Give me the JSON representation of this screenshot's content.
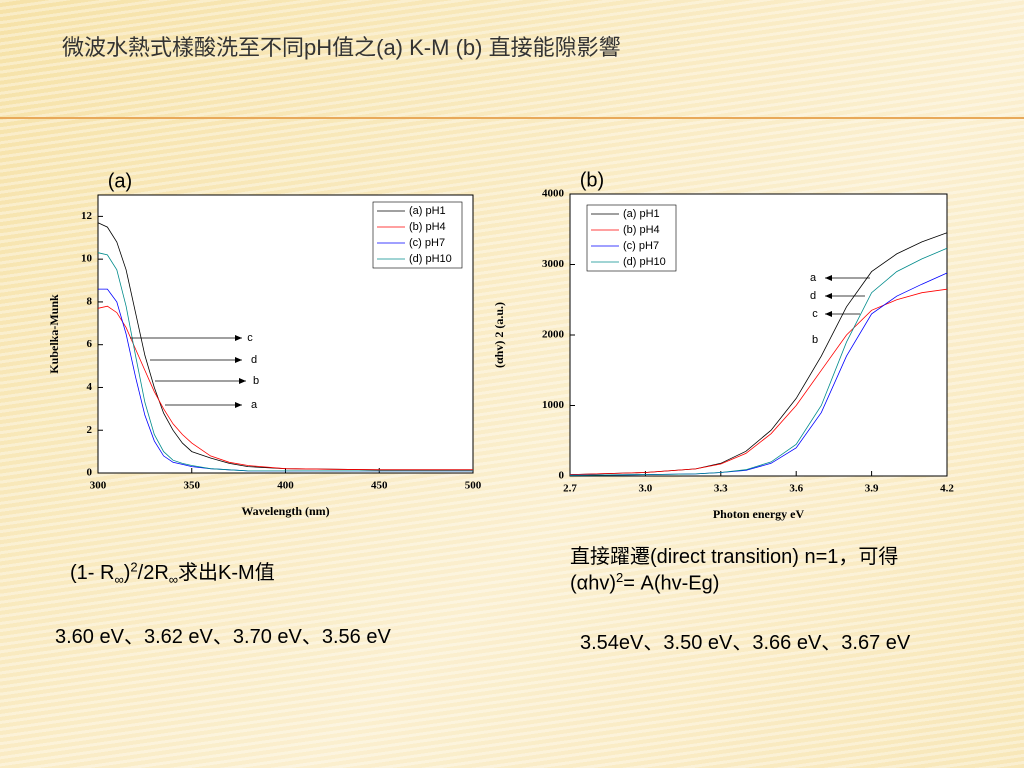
{
  "title": "微波水熱式樣酸洗至不同pH值之(a) K-M (b) 直接能隙影響",
  "chart_data": [
    {
      "type": "line",
      "panel_label": "(a)",
      "x_label": "Wavelength (nm)",
      "y_label": "Kubelka-Munk",
      "x": [
        300,
        305,
        310,
        315,
        320,
        325,
        330,
        335,
        340,
        345,
        350,
        360,
        370,
        380,
        400,
        450,
        500
      ],
      "series": [
        {
          "name": "(a) pH1",
          "color": "#000000",
          "values": [
            11.7,
            11.5,
            10.8,
            9.5,
            7.5,
            5.5,
            4.0,
            2.8,
            2.0,
            1.4,
            1.0,
            0.7,
            0.45,
            0.3,
            0.2,
            0.15,
            0.15
          ]
        },
        {
          "name": "(b) pH4",
          "color": "#ff0000",
          "values": [
            7.7,
            7.8,
            7.5,
            6.8,
            5.8,
            4.8,
            3.8,
            3.0,
            2.3,
            1.8,
            1.4,
            0.8,
            0.5,
            0.35,
            0.2,
            0.15,
            0.15
          ]
        },
        {
          "name": "(c) pH7",
          "color": "#0000ff",
          "values": [
            8.6,
            8.6,
            8.0,
            6.5,
            4.5,
            2.7,
            1.5,
            0.8,
            0.5,
            0.4,
            0.3,
            0.2,
            0.15,
            0.1,
            0.1,
            0.1,
            0.1
          ]
        },
        {
          "name": "(d) pH10",
          "color": "#008b8b",
          "values": [
            10.3,
            10.2,
            9.5,
            7.8,
            5.5,
            3.3,
            1.8,
            1.0,
            0.6,
            0.45,
            0.35,
            0.2,
            0.15,
            0.1,
            0.1,
            0.1,
            0.1
          ]
        }
      ],
      "annotations": [
        "c",
        "d",
        "b",
        "a"
      ],
      "xlim": [
        300,
        500
      ],
      "xticks": [
        300,
        350,
        400,
        450,
        500
      ],
      "ylim": [
        0,
        13
      ],
      "yticks": [
        0,
        2,
        4,
        6,
        8,
        10,
        12
      ]
    },
    {
      "type": "line",
      "panel_label": "(b)",
      "x_label": "Photon energy eV",
      "y_label": "(αhv) 2 (a.u.)",
      "x": [
        2.7,
        3.0,
        3.2,
        3.3,
        3.4,
        3.5,
        3.6,
        3.7,
        3.8,
        3.9,
        4.0,
        4.1,
        4.2
      ],
      "series": [
        {
          "name": "(a) pH1",
          "color": "#000000",
          "values": [
            20,
            50,
            100,
            180,
            350,
            650,
            1100,
            1700,
            2400,
            2900,
            3150,
            3320,
            3450
          ]
        },
        {
          "name": "(b) pH4",
          "color": "#ff0000",
          "values": [
            20,
            50,
            100,
            170,
            320,
            600,
            1000,
            1500,
            2000,
            2350,
            2500,
            2600,
            2650
          ]
        },
        {
          "name": "(c) pH7",
          "color": "#0000ff",
          "values": [
            10,
            20,
            30,
            50,
            80,
            180,
            400,
            900,
            1700,
            2300,
            2550,
            2720,
            2880
          ]
        },
        {
          "name": "(d) pH10",
          "color": "#008b8b",
          "values": [
            10,
            20,
            30,
            50,
            90,
            200,
            450,
            1000,
            1900,
            2600,
            2900,
            3080,
            3230
          ]
        }
      ],
      "annotations": [
        "a",
        "d",
        "c",
        "b"
      ],
      "xlim": [
        2.7,
        4.2
      ],
      "xticks": [
        2.7,
        {
          "value": 3.0,
          "label": "3.0"
        },
        3.3,
        3.6,
        3.9,
        4.2
      ],
      "ylim": [
        0,
        4000
      ],
      "yticks": [
        0,
        1000,
        2000,
        3000,
        4000
      ]
    }
  ],
  "left_formula": [
    "(1- R",
    "∞",
    ")",
    "2",
    "/2R",
    "∞",
    "求出K-M值"
  ],
  "left_values": "3.60 eV、3.62 eV、3.70 eV、3.56 eV",
  "right_line1": "直接躍遷(direct transition) n=1，可得",
  "right_formula": [
    "(αhv)",
    "2",
    "= A(hv-Eg)"
  ],
  "right_values": "3.54eV、3.50 eV、3.66 eV、3.67 eV"
}
